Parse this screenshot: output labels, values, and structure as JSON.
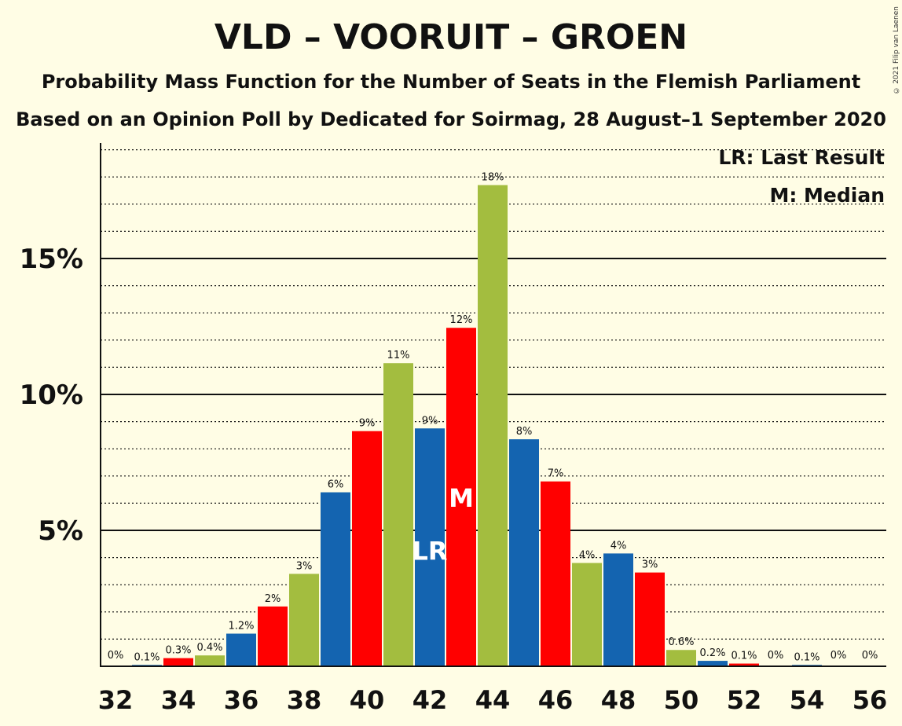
{
  "title": "VLD – VOORUIT – GROEN",
  "subtitle1": "Probability Mass Function for the Number of Seats in the Flemish Parliament",
  "subtitle2": "Based on an Opinion Poll by Dedicated for Soirmag, 28 August–1 September 2020",
  "copyright": "© 2021 Filip van Laenen",
  "legend": {
    "last_result": "LR: Last Result",
    "median": "M: Median"
  },
  "markers": {
    "last_result_text": "LR",
    "last_result_seat": 42,
    "median_text": "M",
    "median_seat": 43
  },
  "colors": {
    "background": "#fffde5",
    "red": "#ff0000",
    "green": "#a3bd3f",
    "blue": "#1464b0"
  },
  "chart_data": {
    "type": "bar",
    "x": [
      32,
      33,
      34,
      35,
      36,
      37,
      38,
      39,
      40,
      41,
      42,
      43,
      44,
      45,
      46,
      47,
      48,
      49,
      50,
      51,
      52,
      53,
      54,
      55,
      56
    ],
    "values": [
      0,
      0.05,
      0.3,
      0.4,
      1.2,
      2.2,
      3.4,
      6.4,
      8.65,
      11.15,
      8.75,
      12.45,
      17.7,
      8.35,
      6.8,
      3.8,
      4.15,
      3.45,
      0.6,
      0.2,
      0.1,
      0,
      0.05,
      0,
      0
    ],
    "labels": [
      "0%",
      "0.1%",
      "0.3%",
      "0.4%",
      "1.2%",
      "2%",
      "3%",
      "6%",
      "9%",
      "11%",
      "9%",
      "12%",
      "18%",
      "8%",
      "7%",
      "4%",
      "4%",
      "3%",
      "0.6%",
      "0.2%",
      "0.1%",
      "0%",
      "0.1%",
      "0%",
      "0%"
    ],
    "colors": [
      "green",
      "blue",
      "red",
      "green",
      "blue",
      "red",
      "green",
      "blue",
      "red",
      "green",
      "blue",
      "red",
      "green",
      "blue",
      "red",
      "green",
      "blue",
      "red",
      "green",
      "blue",
      "red",
      "green",
      "blue",
      "red",
      "green"
    ],
    "xticks": [
      32,
      34,
      36,
      38,
      40,
      42,
      44,
      46,
      48,
      50,
      52,
      54,
      56
    ],
    "yticks": [
      {
        "value": 5,
        "label": "5%"
      },
      {
        "value": 10,
        "label": "10%"
      },
      {
        "value": 15,
        "label": "15%"
      }
    ],
    "ylim": [
      0,
      19.3
    ],
    "minor_grid_step": 1,
    "xlabel": "",
    "ylabel": ""
  }
}
